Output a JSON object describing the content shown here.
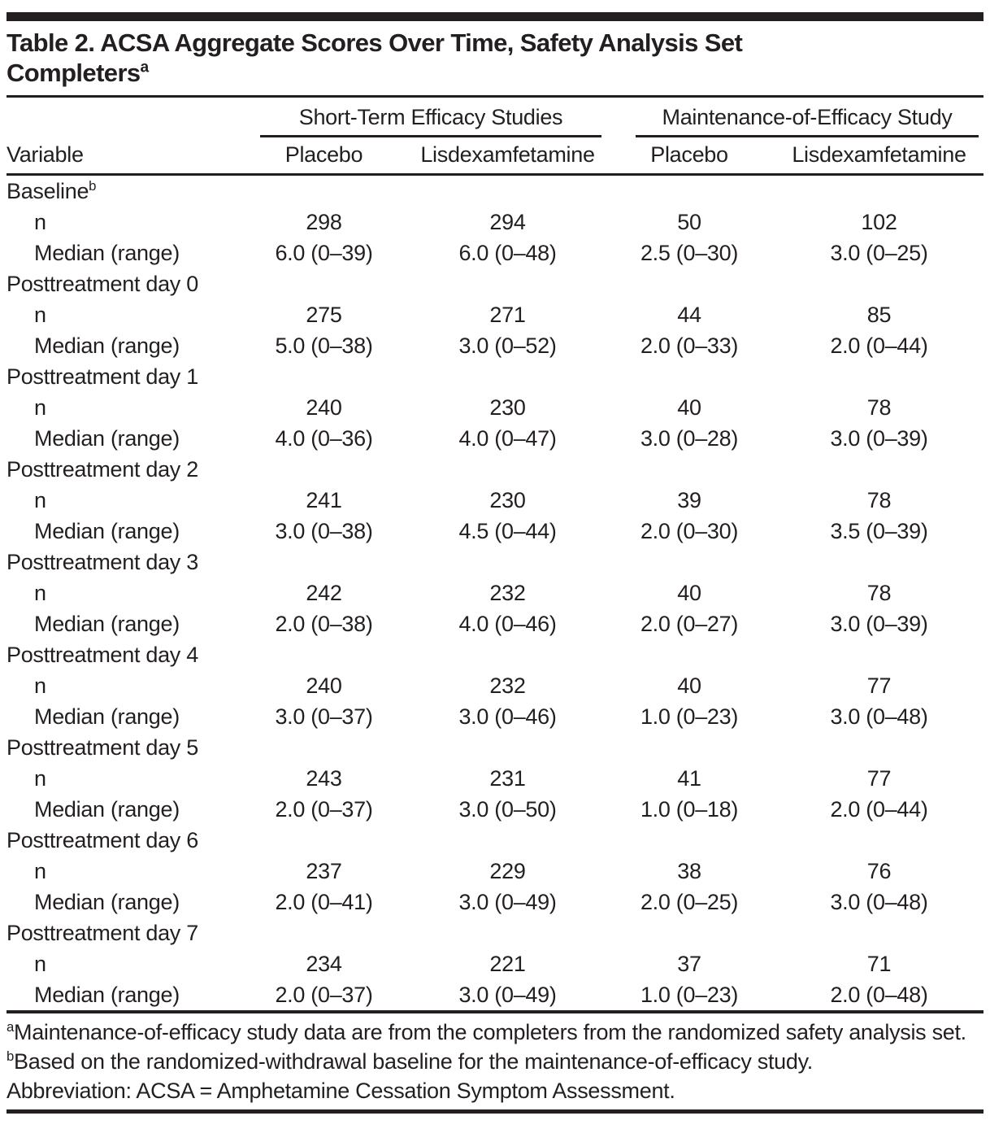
{
  "title": {
    "line1": "Table 2. ACSA Aggregate Scores Over Time, Safety Analysis Set",
    "line2": "Completers",
    "line2_sup": "a"
  },
  "header": {
    "variable_label": "Variable",
    "groups": [
      {
        "label": "Short-Term Efficacy Studies"
      },
      {
        "label": "Maintenance-of-Efficacy Study"
      }
    ],
    "columns": [
      "Placebo",
      "Lisdexamfetamine",
      "Placebo",
      "Lisdexamfetamine"
    ]
  },
  "row_labels": {
    "n": "n",
    "median": "Median (range)"
  },
  "sections": [
    {
      "label": "Baseline",
      "sup": "b",
      "n": [
        "298",
        "294",
        "50",
        "102"
      ],
      "median": [
        "6.0 (0–39)",
        "6.0 (0–48)",
        "2.5 (0–30)",
        "3.0 (0–25)"
      ]
    },
    {
      "label": "Posttreatment day 0",
      "n": [
        "275",
        "271",
        "44",
        "85"
      ],
      "median": [
        "5.0 (0–38)",
        "3.0 (0–52)",
        "2.0 (0–33)",
        "2.0 (0–44)"
      ]
    },
    {
      "label": "Posttreatment day 1",
      "n": [
        "240",
        "230",
        "40",
        "78"
      ],
      "median": [
        "4.0 (0–36)",
        "4.0 (0–47)",
        "3.0 (0–28)",
        "3.0 (0–39)"
      ]
    },
    {
      "label": "Posttreatment day 2",
      "n": [
        "241",
        "230",
        "39",
        "78"
      ],
      "median": [
        "3.0 (0–38)",
        "4.5 (0–44)",
        "2.0 (0–30)",
        "3.5 (0–39)"
      ]
    },
    {
      "label": "Posttreatment day 3",
      "n": [
        "242",
        "232",
        "40",
        "78"
      ],
      "median": [
        "2.0 (0–38)",
        "4.0 (0–46)",
        "2.0 (0–27)",
        "3.0 (0–39)"
      ]
    },
    {
      "label": "Posttreatment day 4",
      "n": [
        "240",
        "232",
        "40",
        "77"
      ],
      "median": [
        "3.0 (0–37)",
        "3.0 (0–46)",
        "1.0 (0–23)",
        "3.0 (0–48)"
      ]
    },
    {
      "label": "Posttreatment day 5",
      "n": [
        "243",
        "231",
        "41",
        "77"
      ],
      "median": [
        "2.0 (0–37)",
        "3.0 (0–50)",
        "1.0 (0–18)",
        "2.0 (0–44)"
      ]
    },
    {
      "label": "Posttreatment day 6",
      "n": [
        "237",
        "229",
        "38",
        "76"
      ],
      "median": [
        "2.0 (0–41)",
        "3.0 (0–49)",
        "2.0 (0–25)",
        "3.0 (0–48)"
      ]
    },
    {
      "label": "Posttreatment day 7",
      "n": [
        "234",
        "221",
        "37",
        "71"
      ],
      "median": [
        "2.0 (0–37)",
        "3.0 (0–49)",
        "1.0 (0–23)",
        "2.0 (0–48)"
      ]
    }
  ],
  "footnotes": [
    {
      "sup": "a",
      "text": "Maintenance-of-efficacy study data are from the completers from the randomized safety analysis set."
    },
    {
      "sup": "b",
      "text": "Based on the randomized-withdrawal baseline for the maintenance-of-efficacy study."
    },
    {
      "sup": "",
      "text": "Abbreviation: ACSA = Amphetamine Cessation Symptom Assessment."
    }
  ],
  "colors": {
    "text": "#231f20",
    "rule": "#231f20",
    "background": "#ffffff"
  }
}
